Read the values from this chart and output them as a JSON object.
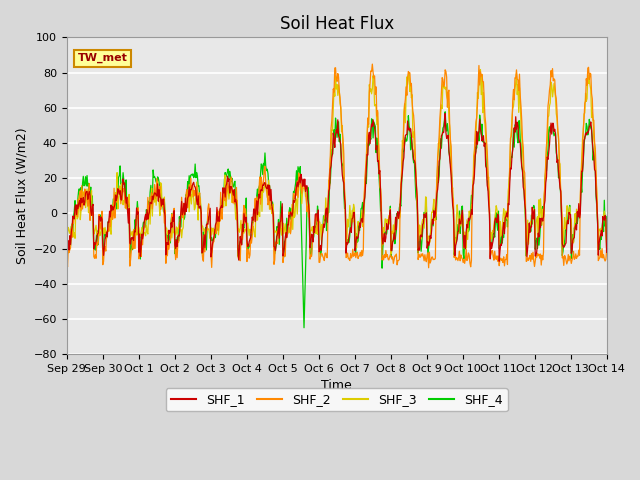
{
  "title": "Soil Heat Flux",
  "ylabel": "Soil Heat Flux (W/m2)",
  "xlabel": "Time",
  "ylim": [
    -80,
    100
  ],
  "series_colors": {
    "SHF_1": "#cc0000",
    "SHF_2": "#ff8800",
    "SHF_3": "#ddcc00",
    "SHF_4": "#00cc00"
  },
  "legend_label": "TW_met",
  "legend_box_color": "#ffff99",
  "legend_box_edge": "#cc8800",
  "x_tick_labels": [
    "Sep 29",
    "Sep 30",
    "Oct 1",
    "Oct 2",
    "Oct 3",
    "Oct 4",
    "Oct 5",
    "Oct 6",
    "Oct 7",
    "Oct 8",
    "Oct 9",
    "Oct 10",
    "Oct 11",
    "Oct 12",
    "Oct 13",
    "Oct 14"
  ],
  "axes_facecolor": "#e8e8e8",
  "grid_color": "#ffffff",
  "title_fontsize": 12,
  "axes_label_fontsize": 9,
  "tick_fontsize": 8
}
